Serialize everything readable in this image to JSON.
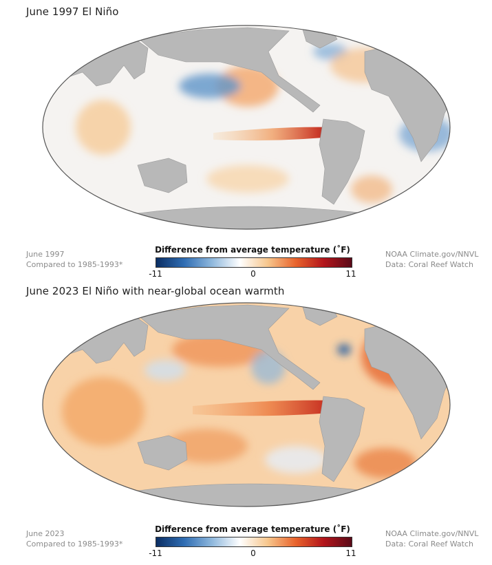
{
  "colorscale": {
    "min": -11,
    "mid": 0,
    "max": 11,
    "stops": [
      "#0b2e63",
      "#2f6db3",
      "#8fb8dd",
      "#ffffff",
      "#f7c68c",
      "#e8632c",
      "#b3151b",
      "#5a0a18"
    ],
    "tick_labels": [
      "-11",
      "0",
      "11"
    ]
  },
  "panels": [
    {
      "id": "1997",
      "title": "June 1997 El Niño",
      "caption_line1": "June 1997",
      "caption_line2": "Compared to 1985-1993*",
      "legend_title": "Difference from average temperature (˚F)",
      "credit_line1": "NOAA Climate.gov/NNVL",
      "credit_line2": "Data: Coral Reef Watch",
      "feature_name": "El Niño"
    },
    {
      "id": "2023",
      "title": "June 2023 El Niño with near-global ocean warmth",
      "caption_line1": "June 2023",
      "caption_line2": "Compared to 1985-1993*",
      "legend_title": "Difference from average temperature (˚F)",
      "credit_line1": "NOAA Climate.gov/NNVL",
      "credit_line2": "Data: Coral Reef Watch",
      "feature_name": "El Niño"
    }
  ],
  "map": {
    "projection": "Mollweide",
    "land_color": "#b8b8b8",
    "background": "#ffffff"
  }
}
